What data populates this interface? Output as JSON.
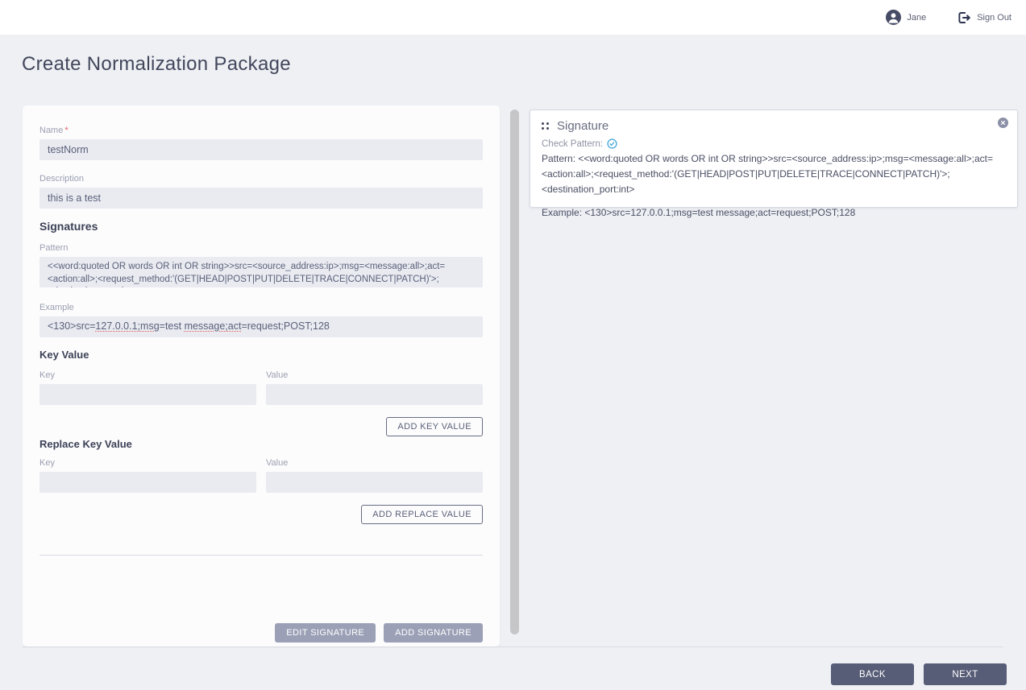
{
  "header": {
    "user_name": "Jane",
    "sign_out_label": "Sign Out"
  },
  "page": {
    "title": "Create Normalization Package"
  },
  "form": {
    "name": {
      "label": "Name",
      "required_marker": "*",
      "value": "testNorm"
    },
    "description": {
      "label": "Description",
      "value": "this is a test"
    },
    "signatures_heading": "Signatures",
    "pattern": {
      "label": "Pattern",
      "value": "<<word:quoted OR words OR int OR string>>src=<source_address:ip>;msg=<message:all>;act=<action:all>;<request_method:'(GET|HEAD|POST|PUT|DELETE|TRACE|CONNECT|PATCH)'>;<destination_port:int>"
    },
    "example": {
      "label": "Example",
      "segments": [
        {
          "text": "<130>src=",
          "error": false
        },
        {
          "text": "127.0.0.1;msg",
          "error": true
        },
        {
          "text": "=test ",
          "error": false
        },
        {
          "text": "message;act",
          "error": true
        },
        {
          "text": "=request;POST;128",
          "error": false
        }
      ]
    },
    "key_value": {
      "heading": "Key Value",
      "key_label": "Key",
      "value_label": "Value",
      "key_value": "",
      "value_value": "",
      "add_button_label": "ADD KEY VALUE"
    },
    "replace_key_value": {
      "heading": "Replace Key Value",
      "key_label": "Key",
      "value_label": "Value",
      "key_value": "",
      "value_value": "",
      "add_button_label": "ADD REPLACE VALUE"
    },
    "edit_signature_label": "EDIT SIGNATURE",
    "add_signature_label": "ADD SIGNATURE"
  },
  "signature_card": {
    "title": "Signature",
    "check_pattern_label": "Check Pattern:",
    "pattern_label": "Pattern:",
    "pattern_text": "<<word:quoted OR words OR int OR string>>src=<source_address:ip>;msg=<message:all>;act=<action:all>;<request_method:'(GET|HEAD|POST|PUT|DELETE|TRACE|CONNECT|PATCH)'>;<destination_port:int>",
    "example_label": "Example:",
    "example_text": "<130>src=127.0.0.1;msg=test message;act=request;POST;128"
  },
  "footer": {
    "back_label": "BACK",
    "next_label": "NEXT"
  },
  "colors": {
    "accent_dark": "#575c77",
    "muted_button": "#9ba0b6",
    "check_icon": "#47a8d8",
    "required_asterisk": "#e05c5c",
    "spellcheck_underline": "#e05c5c",
    "page_background": "#eef0f4",
    "input_background": "#e9ebf1"
  }
}
